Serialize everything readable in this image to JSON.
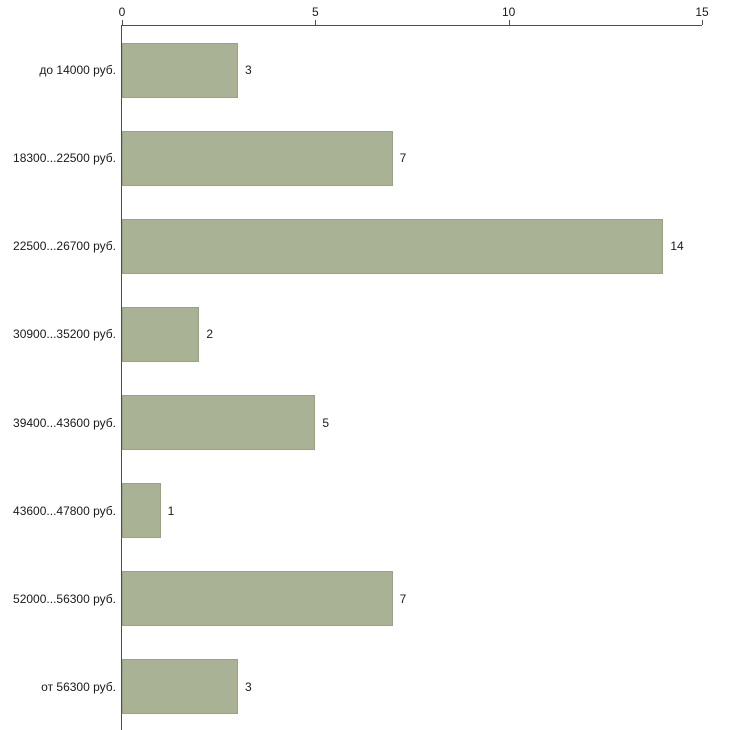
{
  "chart_data": {
    "type": "bar",
    "orientation": "horizontal",
    "title": "",
    "xlabel": "",
    "ylabel": "",
    "categories": [
      "до 14000 руб.",
      "18300...22500 руб.",
      "22500...26700 руб.",
      "30900...35200 руб.",
      "39400...43600 руб.",
      "43600...47800 руб.",
      "52000...56300 руб.",
      "от 56300 руб."
    ],
    "values": [
      3,
      7,
      14,
      2,
      5,
      1,
      7,
      3
    ],
    "xlim": [
      0,
      15
    ],
    "x_ticks": [
      0,
      5,
      10,
      15
    ],
    "grid": false,
    "legend": false,
    "colors": {
      "bar_fill": "#a9b294",
      "bar_border": "#99a186",
      "axis": "#4d4d4d",
      "text": "#1a1a1a",
      "background": "#ffffff"
    }
  }
}
